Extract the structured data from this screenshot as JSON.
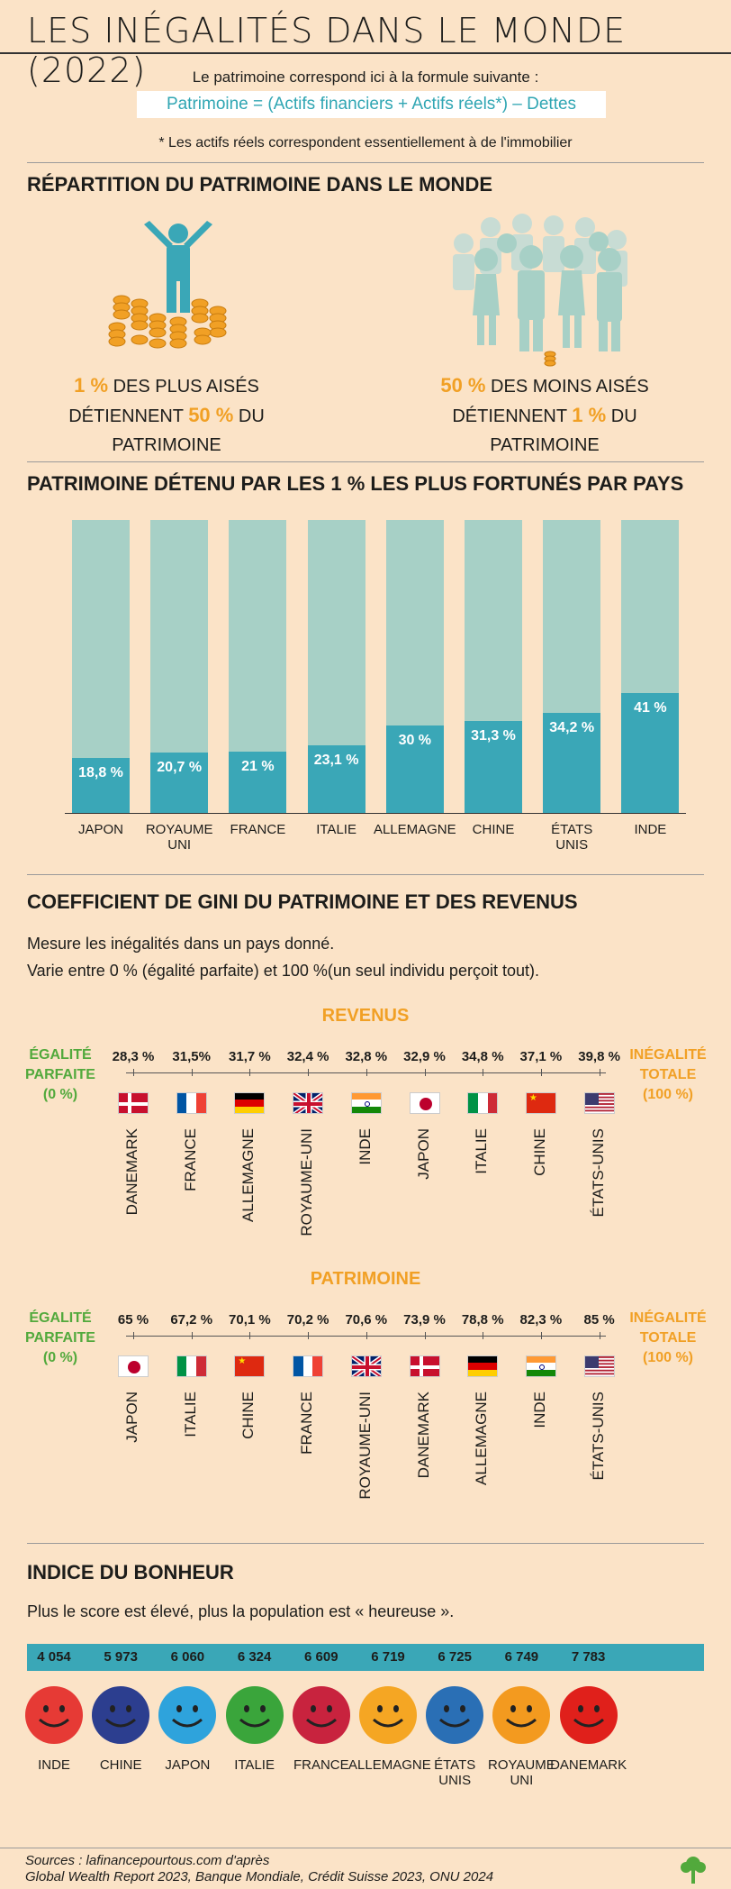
{
  "title": "LES INÉGALITÉS DANS LE MONDE (2022)",
  "formula": {
    "intro": "Le patrimoine correspond ici à la formule suivante :",
    "text": "Patrimoine = (Actifs financiers + Actifs réels*) – Dettes",
    "note": "* Les actifs réels correspondent essentiellement à de l'immobilier"
  },
  "repartition": {
    "title": "RÉPARTITION DU PATRIMOINE DANS LE MONDE",
    "left": {
      "pct1": "1 %",
      "t1": "DES PLUS AISÉS",
      "t2": "DÉTIENNENT",
      "pct2": "50 %",
      "t3": "DU PATRIMOINE"
    },
    "right": {
      "pct1": "50 %",
      "t1": "DES MOINS AISÉS",
      "t2": "DÉTIENNENT",
      "pct2": "1 %",
      "t3": "DU PATRIMOINE"
    }
  },
  "chart_data": {
    "type": "bar",
    "title": "PATRIMOINE DÉTENU PAR LES 1 % LES PLUS FORTUNÉS PAR PAYS",
    "categories": [
      "JAPON",
      "ROYAUME UNI",
      "FRANCE",
      "ITALIE",
      "ALLEMAGNE",
      "CHINE",
      "ÉTATS UNIS",
      "INDE"
    ],
    "values": [
      18.8,
      20.7,
      21,
      23.1,
      30,
      31.3,
      34.2,
      41
    ],
    "labels": [
      "18,8 %",
      "20,7 %",
      "21 %",
      "23,1 %",
      "30 %",
      "31,3 %",
      "34,2 %",
      "41 %"
    ],
    "ylim": [
      0,
      100
    ],
    "colors": {
      "fill": "#3aa7b7",
      "background": "#a7d0c6"
    }
  },
  "gini": {
    "title": "COEFFICIENT DE GINI DU PATRIMOINE ET DES REVENUS",
    "desc1": "Mesure les inégalités dans un pays donné.",
    "desc2": "Varie entre 0 % (égalité parfaite) et 100 %(un seul individu perçoit tout).",
    "left_label": [
      "ÉGALITÉ",
      "PARFAITE",
      "(0 %)"
    ],
    "right_label": [
      "INÉGALITÉ",
      "TOTALE",
      "(100 %)"
    ],
    "revenus": {
      "title": "REVENUS",
      "values": [
        "28,3 %",
        "31,5%",
        "31,7 %",
        "32,4 %",
        "32,8 %",
        "32,9 %",
        "34,8 %",
        "37,1 %",
        "39,8 %"
      ],
      "countries": [
        "DANEMARK",
        "FRANCE",
        "ALLEMAGNE",
        "ROYAUME-UNI",
        "INDE",
        "JAPON",
        "ITALIE",
        "CHINE",
        "ÉTATS-UNIS"
      ]
    },
    "patrimoine": {
      "title": "PATRIMOINE",
      "values": [
        "65 %",
        "67,2 %",
        "70,1 %",
        "70,2 %",
        "70,6 %",
        "73,9 %",
        "78,8 %",
        "82,3 %",
        "85 %"
      ],
      "countries": [
        "JAPON",
        "ITALIE",
        "CHINE",
        "FRANCE",
        "ROYAUME-UNI",
        "DANEMARK",
        "ALLEMAGNE",
        "INDE",
        "ÉTATS-UNIS"
      ]
    }
  },
  "bonheur": {
    "title": "INDICE DU BONHEUR",
    "desc": "Plus le score est élevé, plus la population est « heureuse ».",
    "scores": [
      "4 054",
      "5 973",
      "6 060",
      "6 324",
      "6 609",
      "6 719",
      "6 725",
      "6 749",
      "7 783"
    ],
    "countries": [
      [
        "INDE"
      ],
      [
        "CHINE"
      ],
      [
        "JAPON"
      ],
      [
        "ITALIE"
      ],
      [
        "FRANCE"
      ],
      [
        "ALLEMAGNE"
      ],
      [
        "ÉTATS",
        "UNIS"
      ],
      [
        "ROYAUME",
        "UNI"
      ],
      [
        "DANEMARK"
      ]
    ],
    "colors": [
      "#e63a35",
      "#2c3e8f",
      "#2ea3dc",
      "#3aa53b",
      "#c8233e",
      "#f5a623",
      "#2a6fb5",
      "#f39a1f",
      "#e0201b"
    ]
  },
  "sources": [
    "Sources : lafinancepourtous.com d'après",
    "Global Wealth Report 2023, Banque Mondiale, Crédit Suisse 2023, ONU 2024"
  ]
}
